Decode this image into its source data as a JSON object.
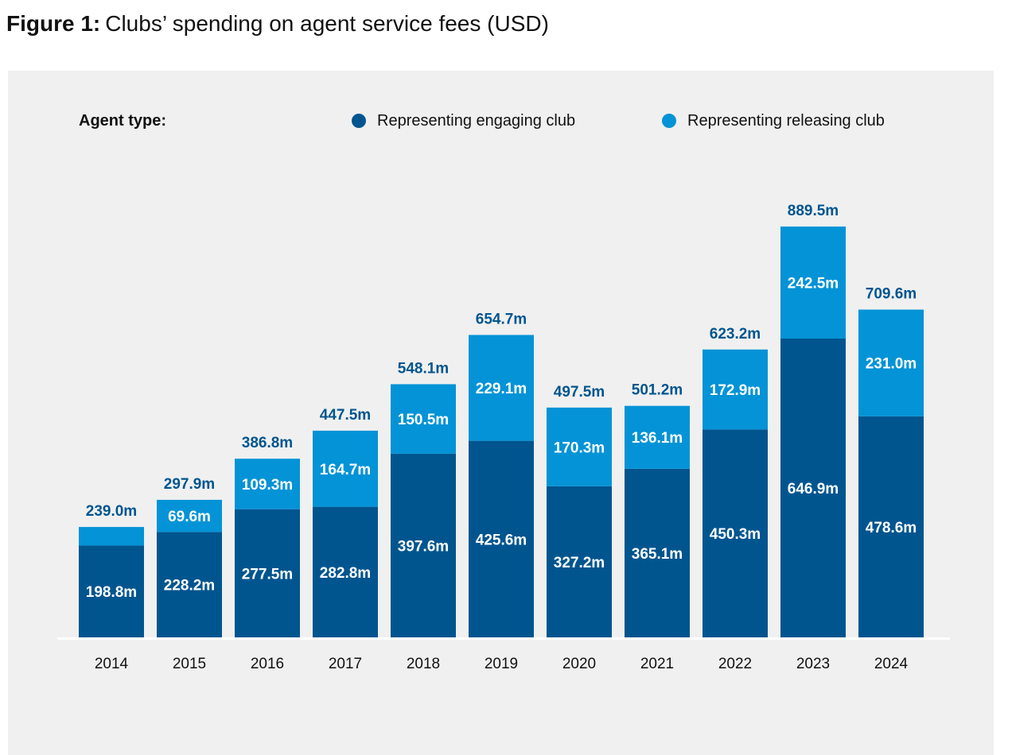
{
  "figure": {
    "number_label": "Figure 1:",
    "title": "Clubs’ spending on agent service fees (USD)"
  },
  "legend": {
    "title": "Agent type:",
    "items": [
      {
        "label": "Representing engaging club",
        "color": "#00558f"
      },
      {
        "label": "Representing releasing club",
        "color": "#0393d6"
      }
    ]
  },
  "chart_data": {
    "type": "bar",
    "stacked": true,
    "title": "Clubs’ spending on agent service fees (USD)",
    "categories": [
      "2014",
      "2015",
      "2016",
      "2017",
      "2018",
      "2019",
      "2020",
      "2021",
      "2022",
      "2023",
      "2024"
    ],
    "series": [
      {
        "name": "Representing engaging club",
        "color": "#00558f",
        "values": [
          198.8,
          228.2,
          277.5,
          282.8,
          397.6,
          425.6,
          327.2,
          365.1,
          450.3,
          646.9,
          478.6
        ],
        "labels": [
          "198.8m",
          "228.2m",
          "277.5m",
          "282.8m",
          "397.6m",
          "425.6m",
          "327.2m",
          "365.1m",
          "450.3m",
          "646.9m",
          "478.6m"
        ]
      },
      {
        "name": "Representing releasing club",
        "color": "#0393d6",
        "values": [
          40.2,
          69.6,
          109.3,
          164.7,
          150.5,
          229.1,
          170.3,
          136.1,
          172.9,
          242.5,
          231.0
        ],
        "labels": [
          "",
          "69.6m",
          "109.3m",
          "164.7m",
          "150.5m",
          "229.1m",
          "170.3m",
          "136.1m",
          "172.9m",
          "242.5m",
          "231.0m"
        ]
      }
    ],
    "totals": [
      239.0,
      297.9,
      386.8,
      447.5,
      548.1,
      654.7,
      497.5,
      501.2,
      623.2,
      889.5,
      709.6
    ],
    "total_labels": [
      "239.0m",
      "297.9m",
      "386.8m",
      "447.5m",
      "548.1m",
      "654.7m",
      "497.5m",
      "501.2m",
      "623.2m",
      "889.5m",
      "709.6m"
    ],
    "total_label_color": "#00558f",
    "ylim": [
      0,
      889.5
    ],
    "grid": false,
    "legend_position": "top"
  }
}
